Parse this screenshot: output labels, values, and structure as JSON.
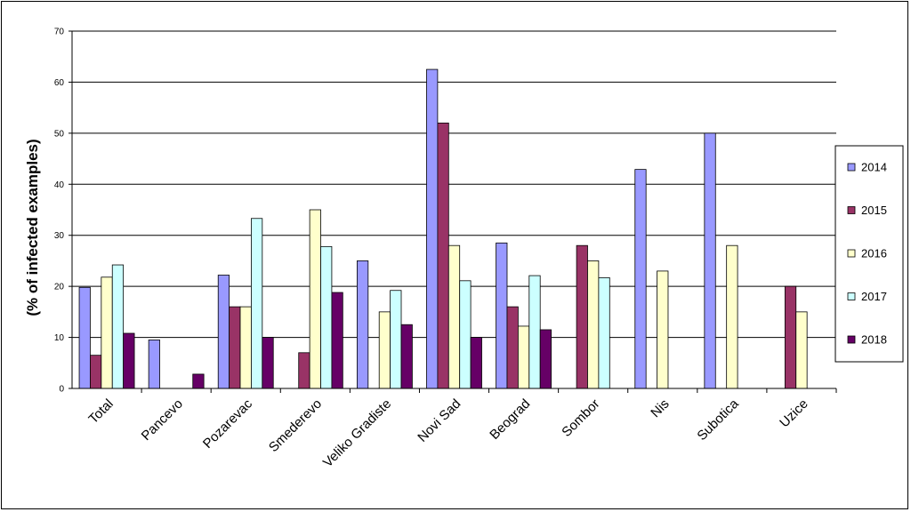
{
  "chart_data": {
    "type": "bar",
    "title": "",
    "xlabel": "",
    "ylabel": "(% of infected examples)",
    "ylim": [
      0,
      70
    ],
    "yticks": [
      0,
      10,
      20,
      30,
      40,
      50,
      60,
      70
    ],
    "grid": true,
    "legend_position": "right",
    "categories": [
      "Total",
      "Pancevo",
      "Pozarevac",
      "Smederevo",
      "Veliko Gradiste",
      "Novi Sad",
      "Beograd",
      "Sombor",
      "Nis",
      "Subotica",
      "Uzice"
    ],
    "series": [
      {
        "name": "2014",
        "color": "#9999ff",
        "values": [
          19.8,
          9.5,
          22.2,
          0,
          25,
          62.5,
          28.5,
          0,
          42.9,
          50,
          0
        ]
      },
      {
        "name": "2015",
        "color": "#993366",
        "values": [
          6.5,
          0,
          16,
          7,
          0,
          52,
          16,
          28,
          0,
          0,
          20
        ]
      },
      {
        "name": "2016",
        "color": "#ffffcc",
        "values": [
          21.8,
          0,
          16,
          35,
          15,
          28,
          12.2,
          25,
          23,
          28,
          15
        ]
      },
      {
        "name": "2017",
        "color": "#ccffff",
        "values": [
          24.2,
          0,
          33.3,
          27.8,
          19.2,
          21.1,
          22.1,
          21.7,
          0,
          0,
          0
        ]
      },
      {
        "name": "2018",
        "color": "#660066",
        "values": [
          10.8,
          2.8,
          10,
          18.8,
          12.5,
          10,
          11.5,
          0,
          0,
          0,
          0
        ]
      }
    ]
  }
}
